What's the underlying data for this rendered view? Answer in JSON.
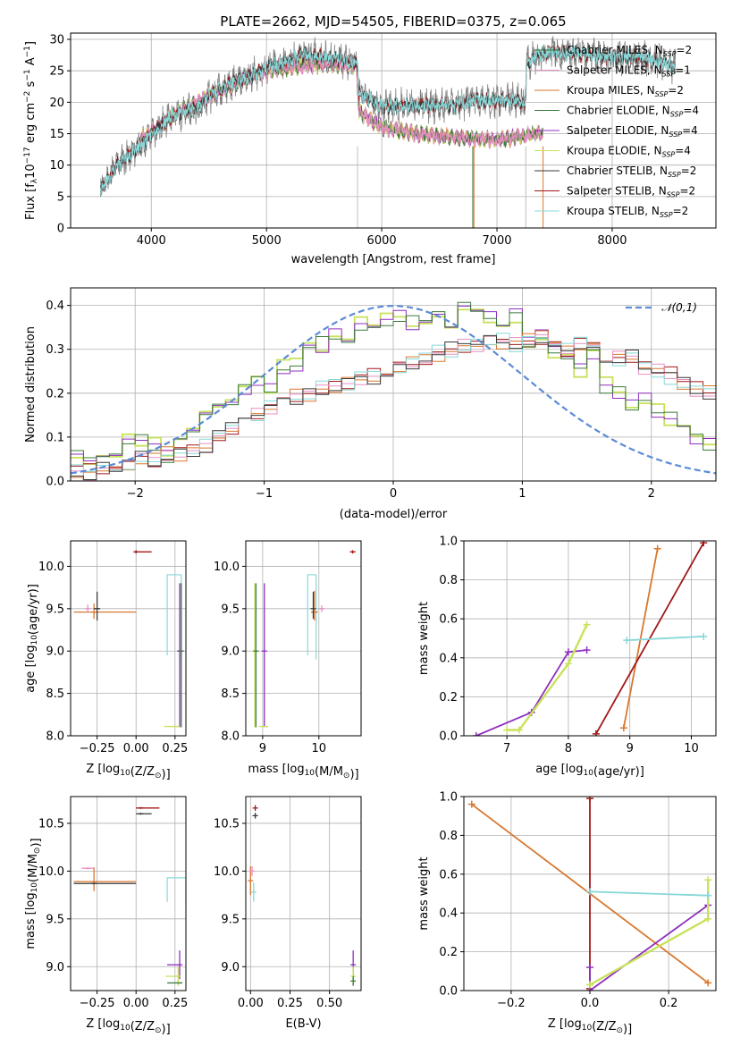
{
  "figure_title": "PLATE=2662, MJD=54505, FIBERID=0375, z=0.065",
  "series": [
    {
      "key": "chab_miles",
      "label": "Chabrier MILES, N",
      "sub": "SSP",
      "suffix": "=2",
      "color": "#2f6e2f"
    },
    {
      "key": "salp_miles",
      "label": "Salpeter MILES, N",
      "sub": "SSP",
      "suffix": "=1",
      "color": "#e88fc0"
    },
    {
      "key": "krou_miles",
      "label": "Kroupa MILES, N",
      "sub": "SSP",
      "suffix": "=2",
      "color": "#d9772f"
    },
    {
      "key": "chab_elodie",
      "label": "Chabrier ELODIE, N",
      "sub": "SSP",
      "suffix": "=4",
      "color": "#3c7a3c"
    },
    {
      "key": "salp_elodie",
      "label": "Salpeter ELODIE, N",
      "sub": "SSP",
      "suffix": "=4",
      "color": "#8f2fbf"
    },
    {
      "key": "krou_elodie",
      "label": "Kroupa ELODIE, N",
      "sub": "SSP",
      "suffix": "=4",
      "color": "#c8e25a"
    },
    {
      "key": "chab_stelib",
      "label": "Chabrier STELIB, N",
      "sub": "SSP",
      "suffix": "=2",
      "color": "#3a3a3a"
    },
    {
      "key": "salp_stelib",
      "label": "Salpeter STELIB, N",
      "sub": "SSP",
      "suffix": "=2",
      "color": "#a01818"
    },
    {
      "key": "krou_stelib",
      "label": "Kroupa STELIB, N",
      "sub": "SSP",
      "suffix": "=2",
      "color": "#88d8d8"
    }
  ],
  "chart_data": [
    {
      "id": "spectrum",
      "type": "line",
      "xlabel": "wavelength [Angstrom, rest frame]",
      "ylabel_parts": [
        "Flux [f",
        "λ",
        "10",
        "−17",
        " erg cm",
        "−2",
        " s",
        "−1",
        " A",
        "−1",
        "]"
      ],
      "xlim": [
        3300,
        8900
      ],
      "ylim": [
        0,
        31
      ],
      "xticks": [
        4000,
        5000,
        6000,
        7000,
        8000
      ],
      "yticks": [
        0,
        5,
        10,
        15,
        20,
        25,
        30
      ],
      "data_color": "#808080",
      "data_knots": {
        "x": [
          3560,
          3700,
          3900,
          4000,
          4200,
          4400,
          4500,
          4700,
          4900,
          5000,
          5200,
          5300,
          5500,
          5700,
          5790,
          5800,
          6000,
          6300,
          6600,
          6800,
          7000,
          7200,
          7240,
          7260,
          7350,
          7500,
          7600,
          7800,
          8000,
          8200,
          8400,
          8550
        ],
        "y": [
          6,
          10,
          13,
          15,
          18,
          19,
          21,
          23,
          24.5,
          25.5,
          26.5,
          27.5,
          27.2,
          26.5,
          26,
          21.5,
          19.3,
          19.5,
          19.5,
          20.3,
          20.3,
          20.2,
          19.5,
          26,
          27.5,
          28,
          27.8,
          27.6,
          27,
          27.3,
          26.5,
          25.5
        ]
      },
      "model_groups": [
        {
          "name": "STELIB",
          "lo": 3560,
          "hi": 8550,
          "colors": [
            "#a01818",
            "#3a3a3a",
            "#88d8d8"
          ]
        },
        {
          "name": "MILES/ELODIE",
          "lo": 3900,
          "hi": 7400,
          "colors": [
            "#d9772f",
            "#8f2fbf",
            "#c8e25a",
            "#3c7a3c",
            "#e88fc0"
          ],
          "knots": {
            "x": [
              3900,
              4200,
              4500,
              4800,
              5000,
              5400,
              5780,
              5800,
              6000,
              6300,
              6600,
              7000,
              7200,
              7300,
              7400
            ],
            "y": [
              13.8,
              18,
              21,
              23.5,
              25,
              26,
              26,
              18.5,
              16,
              15,
              14.5,
              14,
              14.5,
              15,
              15
            ]
          }
        }
      ]
    },
    {
      "id": "residuals",
      "type": "histogram-step",
      "xlabel": "(data-model)/error",
      "ylabel": "Normed distribution",
      "xlim": [
        -2.5,
        2.5
      ],
      "ylim": [
        0,
        0.44
      ],
      "xticks": [
        -2,
        -1,
        0,
        1,
        2
      ],
      "yticks": [
        0.0,
        0.1,
        0.2,
        0.3,
        0.4
      ],
      "bin_width": 0.1,
      "reference": {
        "label": "𝒩(0,1)",
        "color": "#5b8bd6"
      },
      "families": [
        {
          "name": "ELODIE-like",
          "colors": [
            "#c8e25a",
            "#8f2fbf",
            "#3c7a3c"
          ],
          "values": [
            0.06,
            0.05,
            0.04,
            0.06,
            0.1,
            0.09,
            0.08,
            0.06,
            0.1,
            0.12,
            0.14,
            0.16,
            0.19,
            0.21,
            0.23,
            0.22,
            0.26,
            0.27,
            0.3,
            0.31,
            0.34,
            0.33,
            0.36,
            0.35,
            0.37,
            0.38,
            0.36,
            0.35,
            0.39,
            0.34,
            0.39,
            0.39,
            0.37,
            0.35,
            0.38,
            0.31,
            0.33,
            0.3,
            0.29,
            0.25,
            0.28,
            0.22,
            0.2,
            0.18,
            0.19,
            0.16,
            0.14,
            0.12,
            0.1,
            0.09,
            0.08,
            0.06,
            0.05,
            0.05,
            0.04,
            0.03,
            0.03,
            0.03,
            0.02,
            0.02,
            0.02,
            0.01,
            0.02,
            0.01,
            0.01,
            0.01,
            0.01,
            0.01,
            0.01,
            0.01
          ]
        },
        {
          "name": "STELIB/MILES-like",
          "colors": [
            "#a01818",
            "#d9772f",
            "#e88fc0",
            "#88d8d8",
            "#3a3a3a"
          ],
          "values": [
            0.02,
            0.02,
            0.03,
            0.03,
            0.04,
            0.05,
            0.05,
            0.06,
            0.06,
            0.07,
            0.08,
            0.1,
            0.12,
            0.13,
            0.15,
            0.17,
            0.18,
            0.19,
            0.2,
            0.21,
            0.22,
            0.22,
            0.23,
            0.24,
            0.25,
            0.26,
            0.27,
            0.28,
            0.29,
            0.3,
            0.31,
            0.31,
            0.32,
            0.32,
            0.31,
            0.32,
            0.33,
            0.32,
            0.3,
            0.31,
            0.3,
            0.29,
            0.28,
            0.28,
            0.26,
            0.25,
            0.24,
            0.22,
            0.21,
            0.2
          ]
        }
      ]
    },
    {
      "id": "age_Z",
      "type": "errorbar",
      "xlabel": "Z [log10(Z/Z⊙)]",
      "ylabel": "age [log10(age/yr)]",
      "xlim": [
        -0.42,
        0.32
      ],
      "ylim": [
        8,
        10.3
      ],
      "xticks": [
        -0.25,
        0.0,
        0.25
      ],
      "xtick_labels": [
        "−0.25",
        "0.00",
        "0.25"
      ],
      "yticks": [
        8.0,
        8.5,
        9.0,
        9.5,
        10.0
      ],
      "points": [
        {
          "x": 0.0,
          "y": 10.17,
          "xerr": [
            0.01,
            0.1
          ],
          "yerr": [
            0.02,
            0.02
          ],
          "color": "#a01818"
        },
        {
          "x": -0.27,
          "y": 9.46,
          "xerr": [
            0.13,
            0.27
          ],
          "yerr": [
            0.08,
            0.1
          ],
          "color": "#d9772f"
        },
        {
          "x": -0.25,
          "y": 9.5,
          "xerr": [
            0.02,
            0.02
          ],
          "yerr": [
            0.14,
            0.2
          ],
          "color": "#3a3a3a"
        },
        {
          "x": -0.31,
          "y": 9.5,
          "xerr": [
            0.01,
            0.01
          ],
          "yerr": [
            0.05,
            0.05
          ],
          "color": "#e88fc0"
        },
        {
          "x": 0.28,
          "y": 9.0,
          "xerr": [
            0.0,
            0.0
          ],
          "yerr": [
            0.9,
            0.8
          ],
          "color": "#8f2fbf"
        },
        {
          "x": 0.25,
          "y": 8.11,
          "xerr": [
            0.07,
            0.03
          ],
          "yerr": [
            0.0,
            0.0
          ],
          "color": "#c8e25a"
        },
        {
          "x": 0.29,
          "y": 9.0,
          "xerr": [
            0.0,
            0.0
          ],
          "yerr": [
            0.9,
            0.8
          ],
          "color": "#3c7a3c"
        }
      ],
      "boxes": [
        {
          "x0": 0.2,
          "x1": 0.29,
          "y0": 8.95,
          "y1": 9.9,
          "color": "#88d8d8"
        }
      ]
    },
    {
      "id": "age_mass",
      "type": "errorbar",
      "xlabel": "mass [log10(M/M⊙)]",
      "ylabel": "",
      "xlim": [
        8.7,
        10.75
      ],
      "ylim": [
        8,
        10.3
      ],
      "xticks": [
        9,
        10
      ],
      "yticks": [
        8.0,
        8.5,
        9.0,
        9.5,
        10.0
      ],
      "points": [
        {
          "x": 10.6,
          "y": 10.17,
          "xerr": [
            0.03,
            0.05
          ],
          "yerr": [
            0.02,
            0.02
          ],
          "color": "#a01818"
        },
        {
          "x": 9.92,
          "y": 9.46,
          "xerr": [
            0.06,
            0.06
          ],
          "yerr": [
            0.1,
            0.25
          ],
          "color": "#d9772f"
        },
        {
          "x": 9.9,
          "y": 9.5,
          "xerr": [
            0.01,
            0.01
          ],
          "yerr": [
            0.12,
            0.2
          ],
          "color": "#3a3a3a"
        },
        {
          "x": 10.05,
          "y": 9.5,
          "xerr": [
            0.03,
            0.03
          ],
          "yerr": [
            0.04,
            0.04
          ],
          "color": "#e88fc0"
        },
        {
          "x": 9.03,
          "y": 9.0,
          "xerr": [
            0.0,
            0.0
          ],
          "yerr": [
            0.9,
            0.8
          ],
          "color": "#8f2fbf"
        },
        {
          "x": 8.86,
          "y": 9.0,
          "xerr": [
            0.0,
            0.0
          ],
          "yerr": [
            0.9,
            0.8
          ],
          "color": "#c8e25a"
        },
        {
          "x": 8.88,
          "y": 9.0,
          "xerr": [
            0.0,
            0.0
          ],
          "yerr": [
            0.9,
            0.8
          ],
          "color": "#3c7a3c"
        },
        {
          "x": 9.05,
          "y": 8.11,
          "xerr": [
            0.12,
            0.05
          ],
          "yerr": [
            0.0,
            0.0
          ],
          "color": "#c8e25a"
        }
      ],
      "boxes": [
        {
          "x0": 9.8,
          "x1": 9.95,
          "y0": 8.95,
          "y1": 9.9,
          "color": "#88d8d8"
        }
      ]
    },
    {
      "id": "weight_age",
      "type": "line-markers",
      "xlabel": "age [log10(age/yr)]",
      "ylabel": "mass weight",
      "xlim": [
        6.3,
        10.4
      ],
      "ylim": [
        0,
        1
      ],
      "xticks": [
        7,
        8,
        9,
        10
      ],
      "yticks": [
        0.0,
        0.2,
        0.4,
        0.6,
        0.8,
        1.0
      ],
      "series": [
        {
          "color": "#8f2fbf",
          "x": [
            6.5,
            7.4,
            8.0,
            8.3
          ],
          "y": [
            0.0,
            0.12,
            0.43,
            0.44
          ]
        },
        {
          "color": "#c8e25a",
          "x": [
            7.0,
            7.2,
            8.0,
            8.3
          ],
          "y": [
            0.03,
            0.03,
            0.37,
            0.57
          ]
        },
        {
          "color": "#d9772f",
          "x": [
            8.9,
            9.45
          ],
          "y": [
            0.04,
            0.96
          ]
        },
        {
          "color": "#a01818",
          "x": [
            8.45,
            10.2
          ],
          "y": [
            0.01,
            0.99
          ]
        },
        {
          "color": "#88d8d8",
          "x": [
            8.95,
            10.2
          ],
          "y": [
            0.49,
            0.51
          ]
        }
      ]
    },
    {
      "id": "mass_Z",
      "type": "errorbar",
      "xlabel": "Z [log10(Z/Z⊙)]",
      "ylabel": "mass [log10(M/M⊙)]",
      "xlim": [
        -0.42,
        0.32
      ],
      "ylim": [
        8.75,
        10.78
      ],
      "xticks": [
        -0.25,
        0.0,
        0.25
      ],
      "xtick_labels": [
        "−0.25",
        "0.00",
        "0.25"
      ],
      "yticks": [
        9.0,
        9.5,
        10.0,
        10.5
      ],
      "points": [
        {
          "x": 0.03,
          "y": 10.66,
          "xerr": [
            0.03,
            0.12
          ],
          "yerr": [
            0.01,
            0.01
          ],
          "color": "#a01818"
        },
        {
          "x": 0.03,
          "y": 10.6,
          "xerr": [
            0.03,
            0.07
          ],
          "yerr": [
            0.01,
            0.01
          ],
          "color": "#3a3a3a"
        },
        {
          "x": -0.27,
          "y": 9.89,
          "xerr": [
            0.13,
            0.27
          ],
          "yerr": [
            0.1,
            0.15
          ],
          "color": "#d9772f"
        },
        {
          "x": -0.27,
          "y": 9.87,
          "xerr": [
            0.13,
            0.27
          ],
          "yerr": [
            0.01,
            0.01
          ],
          "color": "#3a3a3a"
        },
        {
          "x": -0.31,
          "y": 10.03,
          "xerr": [
            0.04,
            0.04
          ],
          "yerr": [
            0.01,
            0.01
          ],
          "color": "#e88fc0"
        },
        {
          "x": 0.28,
          "y": 9.02,
          "xerr": [
            0.08,
            0.01
          ],
          "yerr": [
            0.15,
            0.15
          ],
          "color": "#8f2fbf"
        },
        {
          "x": 0.27,
          "y": 8.9,
          "xerr": [
            0.08,
            0.01
          ],
          "yerr": [
            0.1,
            0.1
          ],
          "color": "#c8e25a"
        },
        {
          "x": 0.28,
          "y": 8.83,
          "xerr": [
            0.08,
            0.01
          ],
          "yerr": [
            0.0,
            0.0
          ],
          "color": "#3c7a3c"
        }
      ],
      "boxes": [
        {
          "x0": 0.2,
          "x1": 0.32,
          "y0": 9.68,
          "y1": 9.93,
          "color": "#88d8d8"
        }
      ]
    },
    {
      "id": "mass_EBV",
      "type": "errorbar",
      "xlabel": "E(B-V)",
      "ylabel": "",
      "xlim": [
        -0.03,
        0.7
      ],
      "ylim": [
        8.75,
        10.78
      ],
      "xticks": [
        0.0,
        0.25,
        0.5
      ],
      "xtick_labels": [
        "0.00",
        "0.25",
        "0.50"
      ],
      "yticks": [
        9.0,
        9.5,
        10.0,
        10.5
      ],
      "points": [
        {
          "x": 0.03,
          "y": 10.66,
          "xerr": [
            0,
            0
          ],
          "yerr": [
            0.03,
            0.03
          ],
          "color": "#a01818"
        },
        {
          "x": 0.03,
          "y": 10.58,
          "xerr": [
            0,
            0
          ],
          "yerr": [
            0.03,
            0.03
          ],
          "color": "#3a3a3a"
        },
        {
          "x": 0.0,
          "y": 9.9,
          "xerr": [
            0,
            0
          ],
          "yerr": [
            0.15,
            0.15
          ],
          "color": "#d9772f"
        },
        {
          "x": 0.01,
          "y": 10.0,
          "xerr": [
            0,
            0
          ],
          "yerr": [
            0.05,
            0.05
          ],
          "color": "#e88fc0"
        },
        {
          "x": 0.02,
          "y": 9.78,
          "xerr": [
            0,
            0
          ],
          "yerr": [
            0.1,
            0.1
          ],
          "color": "#88d8d8"
        },
        {
          "x": 0.65,
          "y": 9.02,
          "xerr": [
            0,
            0
          ],
          "yerr": [
            0.15,
            0.15
          ],
          "color": "#8f2fbf"
        },
        {
          "x": 0.65,
          "y": 8.9,
          "xerr": [
            0,
            0
          ],
          "yerr": [
            0.1,
            0.1
          ],
          "color": "#c8e25a"
        },
        {
          "x": 0.65,
          "y": 8.85,
          "xerr": [
            0,
            0
          ],
          "yerr": [
            0.05,
            0.05
          ],
          "color": "#3c7a3c"
        }
      ]
    },
    {
      "id": "weight_Z",
      "type": "line-markers",
      "xlabel": "Z [log10(Z/Z⊙)]",
      "ylabel": "mass weight",
      "xlim": [
        -0.32,
        0.32
      ],
      "ylim": [
        0,
        1
      ],
      "xticks": [
        -0.2,
        0.0,
        0.2
      ],
      "xtick_labels": [
        "−0.2",
        "0.0",
        "0.2"
      ],
      "yticks": [
        0.0,
        0.2,
        0.4,
        0.6,
        0.8,
        1.0
      ],
      "series": [
        {
          "color": "#d9772f",
          "x": [
            -0.3,
            0.3
          ],
          "y": [
            0.96,
            0.04
          ]
        },
        {
          "color": "#a01818",
          "x": [
            0.0,
            0.0
          ],
          "y": [
            0.01,
            0.99
          ]
        },
        {
          "color": "#8f2fbf",
          "x": [
            0.0,
            0.0,
            0.3
          ],
          "y": [
            0.12,
            0.0,
            0.44
          ]
        },
        {
          "color": "#c8e25a",
          "x": [
            0.0,
            0.0,
            0.3,
            0.3
          ],
          "y": [
            0.03,
            0.03,
            0.37,
            0.57
          ]
        },
        {
          "color": "#88d8d8",
          "x": [
            0.0,
            0.3
          ],
          "y": [
            0.51,
            0.49
          ]
        }
      ]
    }
  ]
}
